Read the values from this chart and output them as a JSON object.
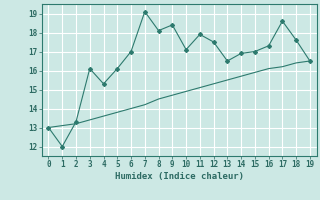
{
  "x": [
    0,
    1,
    2,
    3,
    4,
    5,
    6,
    7,
    8,
    9,
    10,
    11,
    12,
    13,
    14,
    15,
    16,
    17,
    18,
    19
  ],
  "y_line": [
    13,
    12,
    13.3,
    16.1,
    15.3,
    16.1,
    17.0,
    19.1,
    18.1,
    18.4,
    17.1,
    17.9,
    17.5,
    16.5,
    16.9,
    17.0,
    17.3,
    18.6,
    17.6,
    16.5
  ],
  "y_trend": [
    13.0,
    13.1,
    13.2,
    13.4,
    13.6,
    13.8,
    14.0,
    14.2,
    14.5,
    14.7,
    14.9,
    15.1,
    15.3,
    15.5,
    15.7,
    15.9,
    16.1,
    16.2,
    16.4,
    16.5
  ],
  "line_color": "#2d7a6e",
  "bg_color": "#cce8e4",
  "grid_color": "#ffffff",
  "xlabel": "Humidex (Indice chaleur)",
  "ylim": [
    11.5,
    19.5
  ],
  "xlim": [
    -0.5,
    19.5
  ],
  "yticks": [
    12,
    13,
    14,
    15,
    16,
    17,
    18,
    19
  ],
  "xticks": [
    0,
    1,
    2,
    3,
    4,
    5,
    6,
    7,
    8,
    9,
    10,
    11,
    12,
    13,
    14,
    15,
    16,
    17,
    18,
    19
  ],
  "tick_color": "#2d6b63",
  "label_color": "#2d6b63",
  "spine_color": "#2d7a6e"
}
